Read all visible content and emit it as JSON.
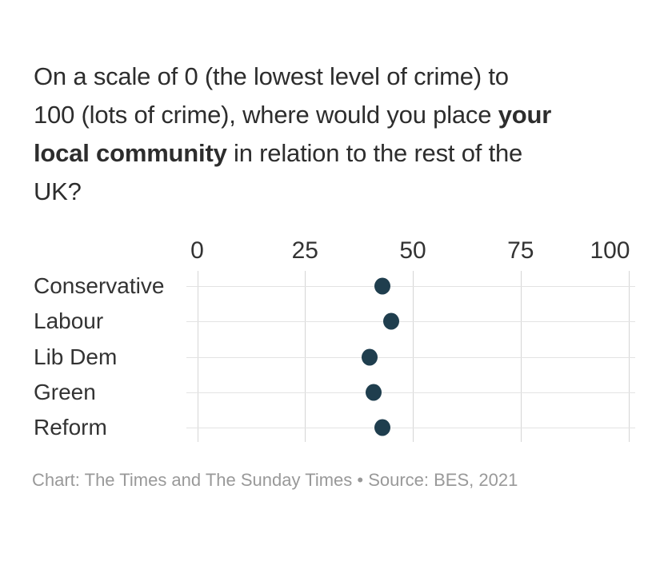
{
  "title": {
    "full_text": "On a scale of 0 (the lowest level of crime) to 100 (lots of crime), where would you place your local community in relation to the rest of the UK?",
    "lines": [
      [
        {
          "text": "On a scale of 0 (the lowest level of crime) to",
          "bold": false
        }
      ],
      [
        {
          "text": "100 (lots of crime), where would you place ",
          "bold": false
        },
        {
          "text": "your",
          "bold": true
        }
      ],
      [
        {
          "text": "local community",
          "bold": true
        },
        {
          "text": " in relation to the rest of the",
          "bold": false
        }
      ],
      [
        {
          "text": "UK?",
          "bold": false
        }
      ]
    ]
  },
  "chart_data": {
    "type": "scatter",
    "subtype": "horizontal-dot-plot",
    "title": "On a scale of 0 (the lowest level of crime) to 100 (lots of crime), where would you place your local community in relation to the rest of the UK?",
    "categories": [
      "Conservative",
      "Labour",
      "Lib Dem",
      "Green",
      "Reform"
    ],
    "values": [
      43,
      45,
      40,
      41,
      43
    ],
    "xlim": [
      0,
      100
    ],
    "x_ticks": [
      0,
      25,
      50,
      75,
      100
    ],
    "x_tick_labels": [
      "0",
      "25",
      "50",
      "75",
      "100"
    ],
    "axis_position": "top",
    "grid": true,
    "legend": "none",
    "source": "BES, 2021"
  },
  "footer": {
    "text": "Chart: The Times and The Sunday Times • Source: BES, 2021"
  },
  "colors": {
    "dot": "#1f3e4e",
    "title_text": "#2d2d2d",
    "category_text": "#333333",
    "axis_text": "#333333",
    "footer_text": "#999999",
    "grid_vertical": "#d6d6d6",
    "grid_horizontal": "#e3e3e3",
    "background": "#ffffff"
  }
}
